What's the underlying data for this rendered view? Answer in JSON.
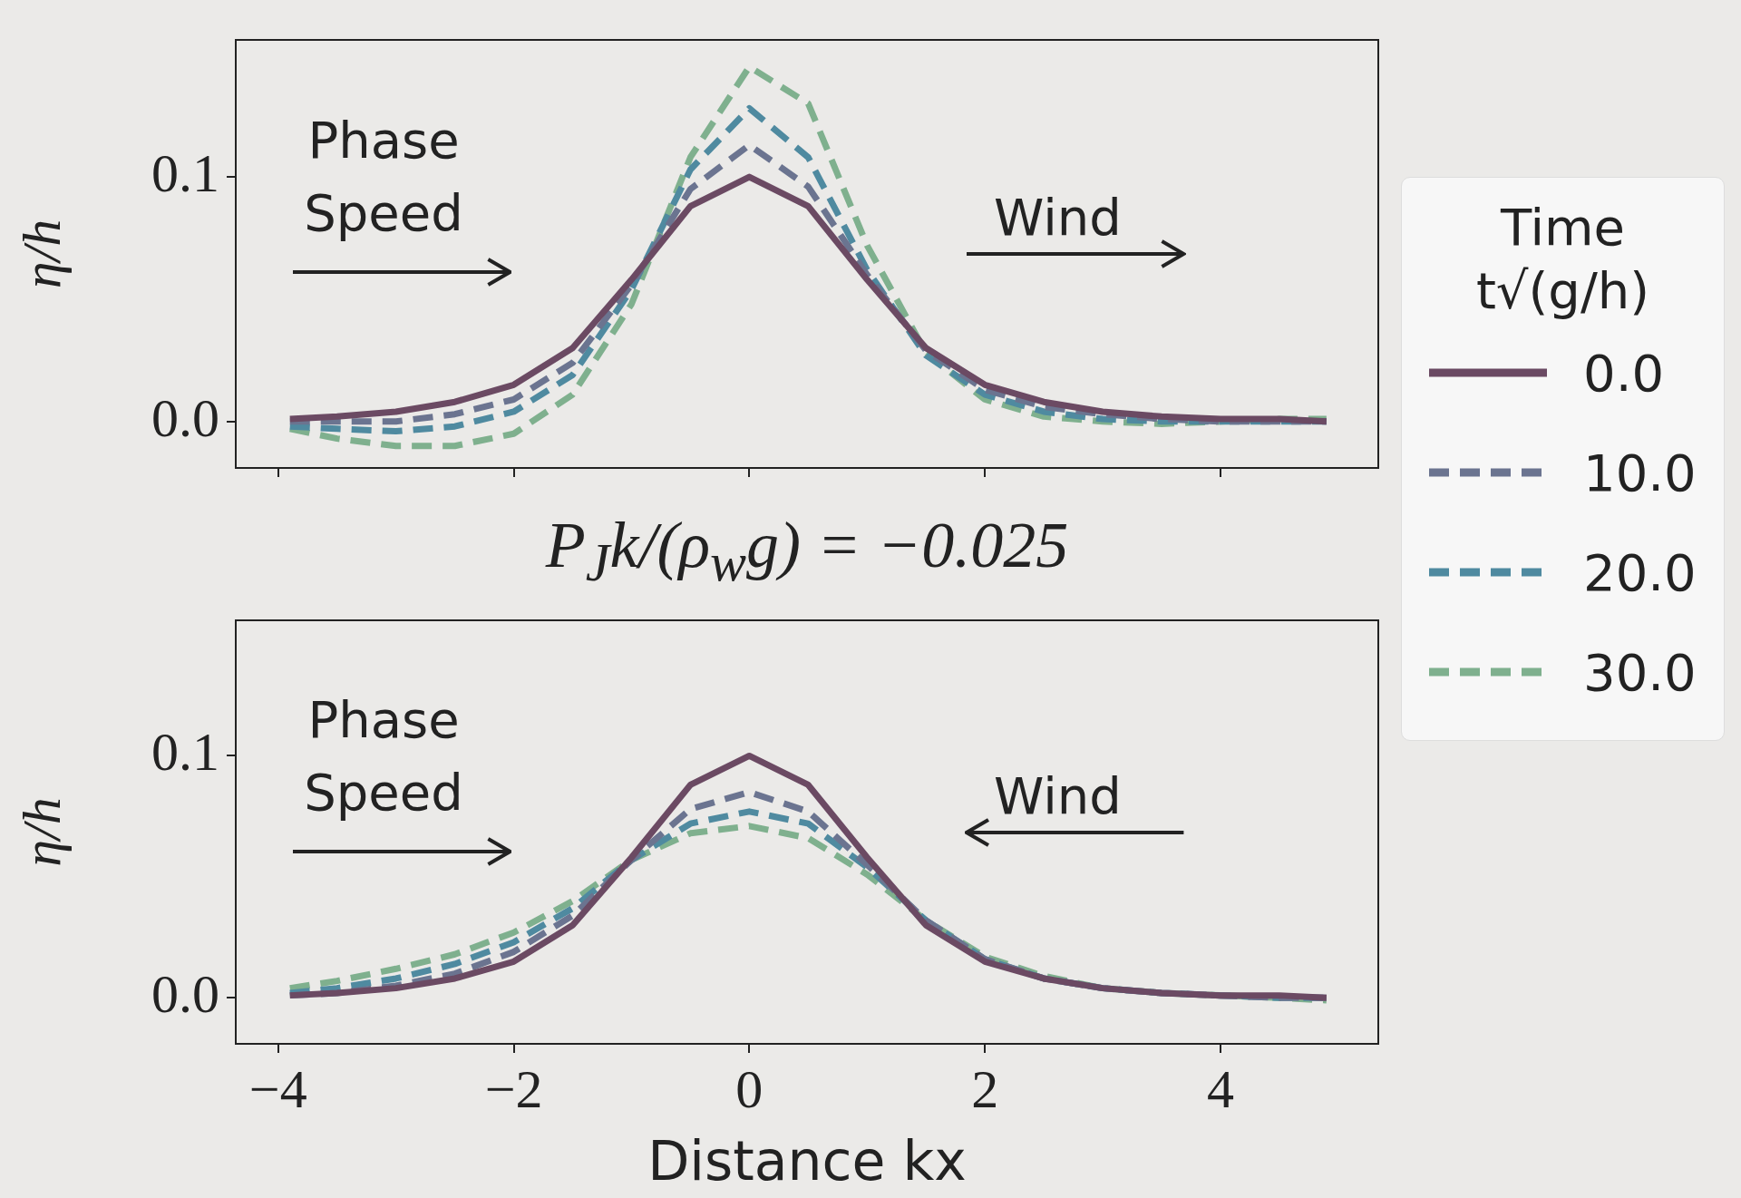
{
  "chart_data": [
    {
      "type": "line",
      "ylabel": "η/h",
      "legend_title": "Time\nt√(g/h)",
      "legend": "right",
      "tick_labels": "y",
      "grid": false,
      "marker": "none",
      "x": [
        -3.9,
        -3.5,
        -3,
        -2.5,
        -2,
        -1.5,
        -1,
        -0.5,
        0,
        0.5,
        1,
        1.5,
        2,
        2.5,
        3,
        3.5,
        4,
        4.5,
        4.9
      ],
      "xlim": [
        -4.36,
        5.34
      ],
      "xticks": [
        -4,
        -2,
        0,
        2,
        4
      ],
      "ylim": [
        -0.019,
        0.156
      ],
      "yticks": [
        {
          "value": 0,
          "label": "0.0"
        },
        0.1
      ],
      "annotations": [
        "Phase Speed",
        "Wind"
      ],
      "series": [
        {
          "name": "0.0",
          "color": "#6b4a63",
          "line_style": "solid",
          "values": [
            0.001,
            0.002,
            0.004,
            0.008,
            0.015,
            0.03,
            0.058,
            0.088,
            0.1,
            0.088,
            0.058,
            0.03,
            0.015,
            0.008,
            0.004,
            0.002,
            0.001,
            0.001,
            0.0
          ]
        },
        {
          "name": "10.0",
          "color": "#6b7490",
          "line_style": "dashed",
          "values": [
            0.0,
            0.0,
            0.0,
            0.003,
            0.009,
            0.024,
            0.056,
            0.095,
            0.113,
            0.096,
            0.06,
            0.029,
            0.013,
            0.006,
            0.003,
            0.001,
            0.0,
            0.0,
            0.0
          ]
        },
        {
          "name": "20.0",
          "color": "#4f8aa0",
          "line_style": "dashed",
          "values": [
            -0.002,
            -0.003,
            -0.004,
            -0.002,
            0.004,
            0.019,
            0.054,
            0.103,
            0.128,
            0.108,
            0.062,
            0.027,
            0.011,
            0.004,
            0.001,
            0.0,
            0.0,
            0.0,
            0.0
          ]
        },
        {
          "name": "30.0",
          "color": "#7fb08e",
          "line_style": "dashed",
          "values": [
            -0.003,
            -0.007,
            -0.01,
            -0.01,
            -0.005,
            0.011,
            0.048,
            0.108,
            0.145,
            0.13,
            0.072,
            0.028,
            0.009,
            0.002,
            0.0,
            -0.001,
            0.0,
            0.001,
            0.001
          ]
        }
      ]
    },
    {
      "type": "line",
      "title": "P$_{J}$k/(ρ$_{w}$g) = −0.025",
      "xlabel": "Distance kx",
      "ylabel": "η/h",
      "grid": false,
      "marker": "none",
      "x": [
        -3.9,
        -3.5,
        -3,
        -2.5,
        -2,
        -1.5,
        -1,
        -0.5,
        0,
        0.5,
        1,
        1.5,
        2,
        2.5,
        3,
        3.5,
        4,
        4.5,
        4.9
      ],
      "xlim": [
        -4.36,
        5.34
      ],
      "xticks": [
        -4,
        -2,
        0,
        2,
        4
      ],
      "ylim": [
        -0.019,
        0.156
      ],
      "yticks": [
        {
          "value": 0,
          "label": "0.0"
        },
        0.1
      ],
      "annotations": [
        "Phase Speed",
        "Wind"
      ],
      "series": [
        {
          "color": "#6b4a63",
          "line_style": "solid",
          "values": [
            0.001,
            0.002,
            0.004,
            0.008,
            0.015,
            0.03,
            0.058,
            0.088,
            0.1,
            0.088,
            0.058,
            0.03,
            0.015,
            0.008,
            0.004,
            0.002,
            0.001,
            0.001,
            0.0
          ]
        },
        {
          "color": "#6b7490",
          "line_style": "dashed",
          "values": [
            0.001,
            0.002,
            0.005,
            0.01,
            0.019,
            0.034,
            0.057,
            0.078,
            0.085,
            0.077,
            0.055,
            0.032,
            0.016,
            0.008,
            0.004,
            0.002,
            0.001,
            0.0,
            0.0
          ]
        },
        {
          "color": "#4f8aa0",
          "line_style": "dashed",
          "values": [
            0.002,
            0.004,
            0.008,
            0.014,
            0.023,
            0.037,
            0.057,
            0.072,
            0.077,
            0.072,
            0.054,
            0.032,
            0.016,
            0.008,
            0.004,
            0.002,
            0.001,
            0.0,
            0.0
          ]
        },
        {
          "color": "#7fb08e",
          "line_style": "dashed",
          "values": [
            0.004,
            0.007,
            0.012,
            0.018,
            0.027,
            0.04,
            0.057,
            0.068,
            0.071,
            0.066,
            0.051,
            0.032,
            0.017,
            0.009,
            0.004,
            0.002,
            0.001,
            0.0,
            -0.001
          ]
        }
      ]
    }
  ]
}
